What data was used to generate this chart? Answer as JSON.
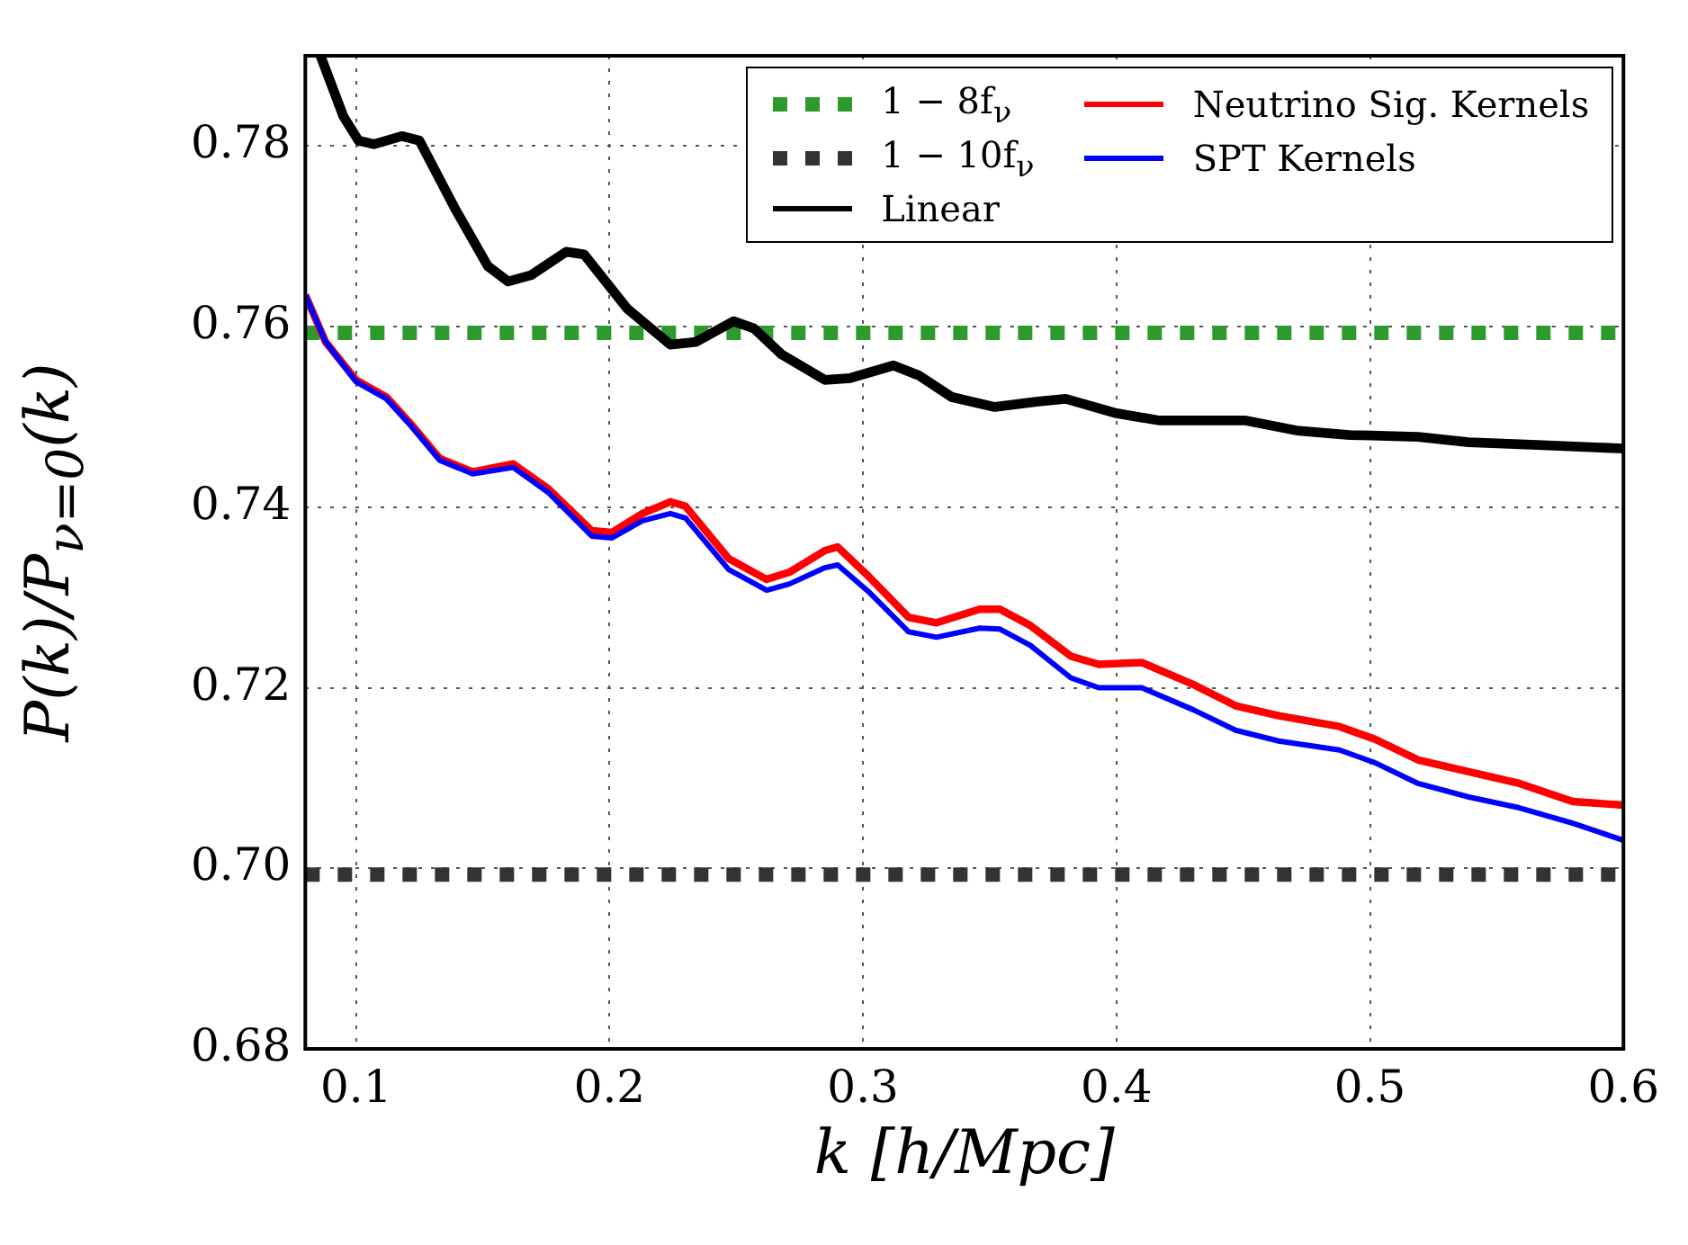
{
  "chart_data": {
    "type": "line",
    "xlabel": "k [h/Mpc]",
    "ylabel": "P(k)/P$_{ν=0}$(k)",
    "xlim": [
      0.08,
      0.6
    ],
    "xticks": [
      0.1,
      0.2,
      0.3,
      0.4,
      0.5,
      0.6
    ],
    "ylim": [
      0.68,
      0.79
    ],
    "yticks": [
      0.68,
      {
        "value": 0.7,
        "label": "0.70"
      },
      0.72,
      0.74,
      0.76,
      0.78
    ],
    "grid": true,
    "legend": "top right",
    "series": [
      {
        "name": "1 − 8f$_{ν}$",
        "color": "#2e9a2e",
        "line_style": "dashed",
        "x": [
          0.08,
          0.6
        ],
        "values": [
          0.7593,
          0.7593
        ]
      },
      {
        "name": "1 − 10f$_{ν}$",
        "color": "#333333",
        "line_style": "dashed",
        "x": [
          0.08,
          0.6
        ],
        "values": [
          0.6993,
          0.6993
        ]
      },
      {
        "name": "Linear",
        "color": "#000000",
        "x": [
          0.086,
          0.095,
          0.101,
          0.107,
          0.118,
          0.125,
          0.139,
          0.152,
          0.16,
          0.169,
          0.183,
          0.19,
          0.207,
          0.224,
          0.234,
          0.249,
          0.257,
          0.268,
          0.285,
          0.295,
          0.312,
          0.322,
          0.335,
          0.352,
          0.369,
          0.38,
          0.4,
          0.417,
          0.451,
          0.471,
          0.492,
          0.519,
          0.539,
          0.566,
          0.6
        ],
        "values": [
          0.79,
          0.7833,
          0.7806,
          0.7802,
          0.7811,
          0.7806,
          0.7731,
          0.7667,
          0.765,
          0.7657,
          0.7683,
          0.768,
          0.762,
          0.758,
          0.7583,
          0.7606,
          0.7598,
          0.7569,
          0.7541,
          0.7543,
          0.7557,
          0.7546,
          0.7522,
          0.7511,
          0.7517,
          0.752,
          0.7504,
          0.7496,
          0.7496,
          0.7485,
          0.748,
          0.7478,
          0.7472,
          0.7469,
          0.7465
        ]
      },
      {
        "name": "Neutrino Sig. Kernels",
        "color": "#ff0000",
        "x": [
          0.08,
          0.088,
          0.1,
          0.112,
          0.122,
          0.133,
          0.146,
          0.162,
          0.176,
          0.193,
          0.201,
          0.213,
          0.224,
          0.23,
          0.247,
          0.262,
          0.271,
          0.285,
          0.29,
          0.302,
          0.318,
          0.329,
          0.346,
          0.354,
          0.366,
          0.382,
          0.393,
          0.41,
          0.43,
          0.447,
          0.464,
          0.488,
          0.502,
          0.519,
          0.539,
          0.559,
          0.58,
          0.6
        ],
        "values": [
          0.7635,
          0.7583,
          0.7541,
          0.7522,
          0.7491,
          0.7454,
          0.7439,
          0.7448,
          0.742,
          0.7374,
          0.7372,
          0.7393,
          0.7406,
          0.7401,
          0.7343,
          0.732,
          0.7328,
          0.7352,
          0.7356,
          0.7324,
          0.7278,
          0.7272,
          0.7287,
          0.7287,
          0.7269,
          0.7235,
          0.7226,
          0.7228,
          0.7204,
          0.718,
          0.7169,
          0.7157,
          0.7143,
          0.712,
          0.7107,
          0.7094,
          0.7074,
          0.707
        ]
      },
      {
        "name": "SPT Kernels",
        "color": "#0000ff",
        "x": [
          0.08,
          0.088,
          0.1,
          0.112,
          0.122,
          0.133,
          0.146,
          0.162,
          0.176,
          0.193,
          0.201,
          0.213,
          0.224,
          0.23,
          0.247,
          0.262,
          0.271,
          0.285,
          0.29,
          0.302,
          0.318,
          0.329,
          0.346,
          0.354,
          0.366,
          0.382,
          0.393,
          0.41,
          0.43,
          0.447,
          0.464,
          0.488,
          0.502,
          0.519,
          0.539,
          0.559,
          0.58,
          0.6
        ],
        "values": [
          0.7635,
          0.7583,
          0.7539,
          0.752,
          0.7489,
          0.7452,
          0.7437,
          0.7444,
          0.7416,
          0.7368,
          0.7366,
          0.7385,
          0.7393,
          0.7388,
          0.7331,
          0.7308,
          0.7315,
          0.7333,
          0.7336,
          0.7307,
          0.7262,
          0.7256,
          0.7266,
          0.7265,
          0.7247,
          0.7211,
          0.72,
          0.72,
          0.7176,
          0.7153,
          0.7141,
          0.7131,
          0.7117,
          0.7094,
          0.7079,
          0.7067,
          0.705,
          0.7031
        ]
      }
    ]
  }
}
